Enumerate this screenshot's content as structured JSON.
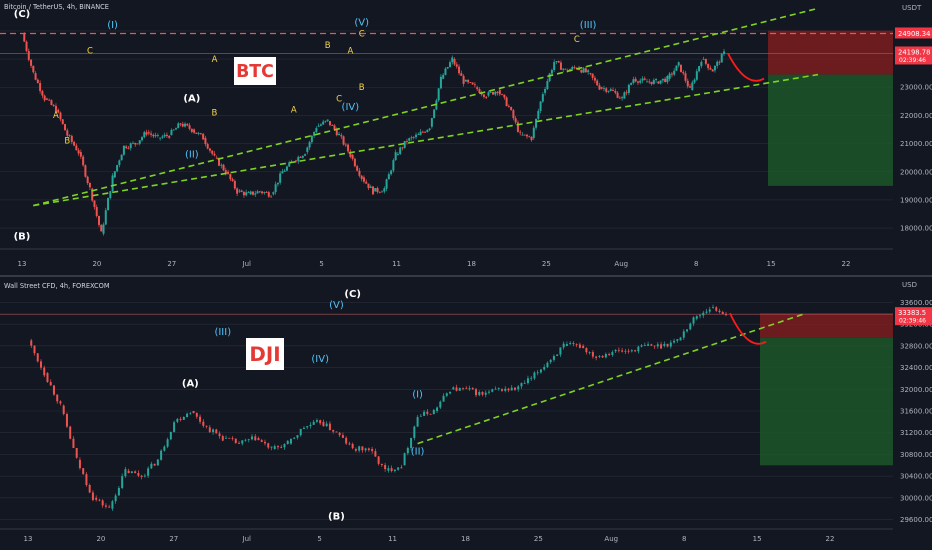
{
  "chart_data": [
    {
      "type": "candlestick",
      "header": "Bitcoin / TetherUS, 4h, BINANCE",
      "symbol_badge": "BTC",
      "currency": "USDT",
      "ylim": [
        17400,
        25600
      ],
      "y_ticks": [
        "25000.00",
        "24000.00",
        "23000.00",
        "22000.00",
        "21000.00",
        "20000.00",
        "19000.00",
        "18000.00"
      ],
      "x_ticks": [
        "13",
        "20",
        "27",
        "Jul",
        "5",
        "11",
        "18",
        "25",
        "Aug",
        "8",
        "15",
        "22"
      ],
      "price_tag": "24198.78",
      "countdown": "02:39:46",
      "resistance_tag": "24908.34",
      "resistance_level": 24908.34,
      "current_level": 24198.78,
      "support_level": 23450,
      "risk_box_bottom": 19500,
      "price_path": [
        [
          "13",
          24900
        ],
        [
          "14",
          23500
        ],
        [
          "15",
          22600
        ],
        [
          "16",
          22200
        ],
        [
          "17",
          21300
        ],
        [
          "18",
          20700
        ],
        [
          "19",
          19400
        ],
        [
          "19.3",
          17800
        ],
        [
          "20",
          19800
        ],
        [
          "21",
          20900
        ],
        [
          "22",
          21000
        ],
        [
          "23",
          21400
        ],
        [
          "24",
          21200
        ],
        [
          "25",
          21300
        ],
        [
          "26",
          21700
        ],
        [
          "27",
          21500
        ],
        [
          "28",
          21200
        ],
        [
          "29",
          20500
        ],
        [
          "30",
          20000
        ],
        [
          "Jul",
          19300
        ],
        [
          "2",
          19200
        ],
        [
          "3",
          19300
        ],
        [
          "4",
          19200
        ],
        [
          "5",
          20000
        ],
        [
          "6",
          20400
        ],
        [
          "7",
          20700
        ],
        [
          "8",
          21600
        ],
        [
          "9",
          21800
        ],
        [
          "10",
          21300
        ],
        [
          "11",
          20600
        ],
        [
          "12",
          19800
        ],
        [
          "13",
          19300
        ],
        [
          "14",
          19400
        ],
        [
          "15",
          20600
        ],
        [
          "16",
          21100
        ],
        [
          "17",
          21300
        ],
        [
          "18",
          21600
        ],
        [
          "19",
          23300
        ],
        [
          "20",
          24000
        ],
        [
          "21",
          23200
        ],
        [
          "22",
          23000
        ],
        [
          "23",
          22700
        ],
        [
          "24",
          22900
        ],
        [
          "25",
          22300
        ],
        [
          "26",
          21300
        ],
        [
          "27",
          21200
        ],
        [
          "28",
          22800
        ],
        [
          "29",
          23900
        ],
        [
          "30",
          23600
        ],
        [
          "31",
          23700
        ],
        [
          "Aug",
          23500
        ],
        [
          "2",
          23000
        ],
        [
          "3",
          22900
        ],
        [
          "4",
          22600
        ],
        [
          "5",
          23300
        ],
        [
          "6",
          23200
        ],
        [
          "7",
          23200
        ],
        [
          "8",
          23300
        ],
        [
          "9",
          23800
        ],
        [
          "10",
          22900
        ],
        [
          "11",
          24000
        ],
        [
          "12",
          23600
        ],
        [
          "13",
          24200
        ]
      ],
      "wave_labels": [
        {
          "text": "(A)",
          "x": "27",
          "y": 22500,
          "color": "#ffffff"
        },
        {
          "text": "(B)",
          "x": "13",
          "y": 17600,
          "color": "#ffffff"
        },
        {
          "text": "(C)",
          "x": "13",
          "y": 25500,
          "color": "#ffffff"
        },
        {
          "text": "(I)",
          "x": "20",
          "y": 25100,
          "color": "#4fc3f7"
        },
        {
          "text": "(II)",
          "x": "27",
          "y": 20500,
          "color": "#4fc3f7"
        },
        {
          "text": "(III)",
          "x": "Aug",
          "y": 25100,
          "color": "#4fc3f7"
        },
        {
          "text": "(IV)",
          "x": "11",
          "y": 22200,
          "color": "#4fc3f7"
        },
        {
          "text": "(V)",
          "x": "12",
          "y": 25200,
          "color": "#4fc3f7"
        },
        {
          "text": "A",
          "x": "16",
          "y": 21900,
          "color": "#f5d547"
        },
        {
          "text": "B",
          "x": "17",
          "y": 21000,
          "color": "#f5d547"
        },
        {
          "text": "C",
          "x": "19",
          "y": 24200,
          "color": "#f5d547"
        },
        {
          "text": "A",
          "x": "29",
          "y": 23900,
          "color": "#f5d547"
        },
        {
          "text": "B",
          "x": "29",
          "y": 22000,
          "color": "#f5d547"
        },
        {
          "text": "C",
          "x": "31",
          "y": 24600,
          "color": "#f5d547"
        },
        {
          "text": "A",
          "x": "6",
          "y": 22100,
          "color": "#f5d547"
        },
        {
          "text": "B",
          "x": "9",
          "y": 24400,
          "color": "#f5d547"
        },
        {
          "text": "C",
          "x": "10",
          "y": 22500,
          "color": "#f5d547"
        },
        {
          "text": "A",
          "x": "11",
          "y": 24200,
          "color": "#f5d547"
        },
        {
          "text": "B",
          "x": "12",
          "y": 22900,
          "color": "#f5d547"
        },
        {
          "text": "C",
          "x": "12",
          "y": 24800,
          "color": "#f5d547"
        }
      ],
      "trendlines": [
        {
          "from": [
            "14",
            18800
          ],
          "to": [
            "15",
            25800
          ],
          "style": "upper-channel"
        },
        {
          "from": [
            "14",
            18800
          ],
          "to": [
            "15",
            23450
          ],
          "style": "lower-channel"
        }
      ]
    },
    {
      "type": "candlestick",
      "header": "Wall Street CFD, 4h, FOREXCOM",
      "symbol_badge": "DJI",
      "currency": "USD",
      "ylim": [
        29500,
        33700
      ],
      "y_ticks": [
        "33600.00",
        "33200.00",
        "32800.00",
        "32400.00",
        "32000.00",
        "31600.00",
        "31200.00",
        "30800.00",
        "30400.00",
        "30000.00",
        "29600.00"
      ],
      "x_ticks": [
        "13",
        "20",
        "27",
        "Jul",
        "5",
        "11",
        "18",
        "25",
        "Aug",
        "8",
        "15",
        "22"
      ],
      "price_tag": "33383.5",
      "countdown": "02:39:46",
      "resistance_level": 33383.5,
      "support_level": 32950,
      "risk_box_bottom": 30600,
      "price_path": [
        [
          "13",
          32900
        ],
        [
          "14",
          32300
        ],
        [
          "15",
          31700
        ],
        [
          "16",
          30700
        ],
        [
          "17",
          30000
        ],
        [
          "20",
          29800
        ],
        [
          "21",
          30500
        ],
        [
          "22",
          30400
        ],
        [
          "23",
          30700
        ],
        [
          "24",
          31400
        ],
        [
          "27",
          31600
        ],
        [
          "28",
          31300
        ],
        [
          "29",
          31100
        ],
        [
          "Jul",
          31000
        ],
        [
          "2",
          31100
        ],
        [
          "5",
          30900
        ],
        [
          "6",
          31000
        ],
        [
          "7",
          31300
        ],
        [
          "8",
          31400
        ],
        [
          "11",
          31200
        ],
        [
          "12",
          30900
        ],
        [
          "13",
          30900
        ],
        [
          "14",
          30500
        ],
        [
          "15",
          30600
        ],
        [
          "18",
          31500
        ],
        [
          "19",
          31600
        ],
        [
          "20",
          32000
        ],
        [
          "21",
          32000
        ],
        [
          "22",
          31900
        ],
        [
          "25",
          32000
        ],
        [
          "26",
          32000
        ],
        [
          "27",
          32200
        ],
        [
          "28",
          32500
        ],
        [
          "29",
          32800
        ],
        [
          "Aug",
          32800
        ],
        [
          "2",
          32600
        ],
        [
          "3",
          32700
        ],
        [
          "4",
          32700
        ],
        [
          "5",
          32800
        ],
        [
          "8",
          32800
        ],
        [
          "9",
          32900
        ],
        [
          "10",
          33300
        ],
        [
          "11",
          33500
        ],
        [
          "12",
          33400
        ]
      ],
      "wave_labels": [
        {
          "text": "(A)",
          "x": "27",
          "y": 32050,
          "color": "#ffffff"
        },
        {
          "text": "(B)",
          "x": "11",
          "y": 29600,
          "color": "#ffffff"
        },
        {
          "text": "(C)",
          "x": "12",
          "y": 33700,
          "color": "#ffffff"
        },
        {
          "text": "(I)",
          "x": "18",
          "y": 31850,
          "color": "#4fc3f7"
        },
        {
          "text": "(II)",
          "x": "18",
          "y": 30800,
          "color": "#4fc3f7"
        },
        {
          "text": "(III)",
          "x": "29",
          "y": 33000,
          "color": "#4fc3f7"
        },
        {
          "text": "(IV)",
          "x": "8",
          "y": 32500,
          "color": "#4fc3f7"
        },
        {
          "text": "(V)",
          "x": "11",
          "y": 33500,
          "color": "#4fc3f7"
        }
      ],
      "trendlines": [
        {
          "from": [
            "18",
            31000
          ],
          "to": [
            "15",
            33400
          ],
          "style": "lower-channel"
        }
      ]
    }
  ],
  "colors": {
    "up": "#26a69a",
    "down": "#ef5350",
    "background": "#131722",
    "channel": "#7ed321",
    "risk": "#8b1e1e",
    "reward": "#1e5a2a",
    "grid": "#2a2e39",
    "badge_bg": "#ffffff",
    "badge_text": "#e53935"
  }
}
